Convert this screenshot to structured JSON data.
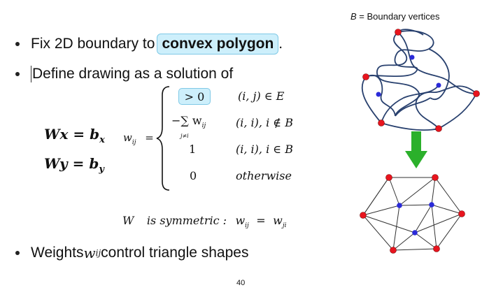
{
  "slide": {
    "bullets": [
      {
        "prefix": "Fix 2D boundary to ",
        "highlight": "convex polygon",
        "suffix": "."
      },
      {
        "text": "Define drawing as a solution of"
      }
    ],
    "last_bullet": {
      "prefix": "Weights ",
      "var": "w",
      "sub": "ij",
      "suffix": " control triangle shapes"
    },
    "page_number": "40"
  },
  "equations": {
    "left": [
      {
        "lhs": "Wx",
        "eq": " = ",
        "rhs": "b",
        "sub": "x"
      },
      {
        "lhs": "Wy",
        "eq": " = ",
        "rhs": "b",
        "sub": "y"
      }
    ],
    "w_label": "w",
    "w_sub": "ij",
    "w_eq": "=",
    "cases": [
      {
        "value": "> 0",
        "condition": "(i, j) ∈ E"
      },
      {
        "value": "−∑ w",
        "value_sub": "ij",
        "value_under": "j≠i",
        "condition": "(i, i), i ∉ B"
      },
      {
        "value": "1",
        "condition": "(i, i), i ∈ B"
      },
      {
        "value": "0",
        "condition": "otherwise"
      }
    ],
    "symmetric": {
      "W": "W",
      "text": "is symmetric :",
      "lhs": "w",
      "lhs_sub": "ij",
      "eq": "=",
      "rhs": "w",
      "rhs_sub": "ji"
    }
  },
  "figure": {
    "legend_var": "B",
    "legend_text": " = Boundary vertices",
    "colors": {
      "boundary_vertex": "#e8141e",
      "interior_vertex": "#2a2ad8",
      "curve": "#28406e",
      "arrow": "#2bb02b",
      "highlight_bg": "#cdeffb",
      "highlight_border": "#7fc9e6"
    }
  }
}
